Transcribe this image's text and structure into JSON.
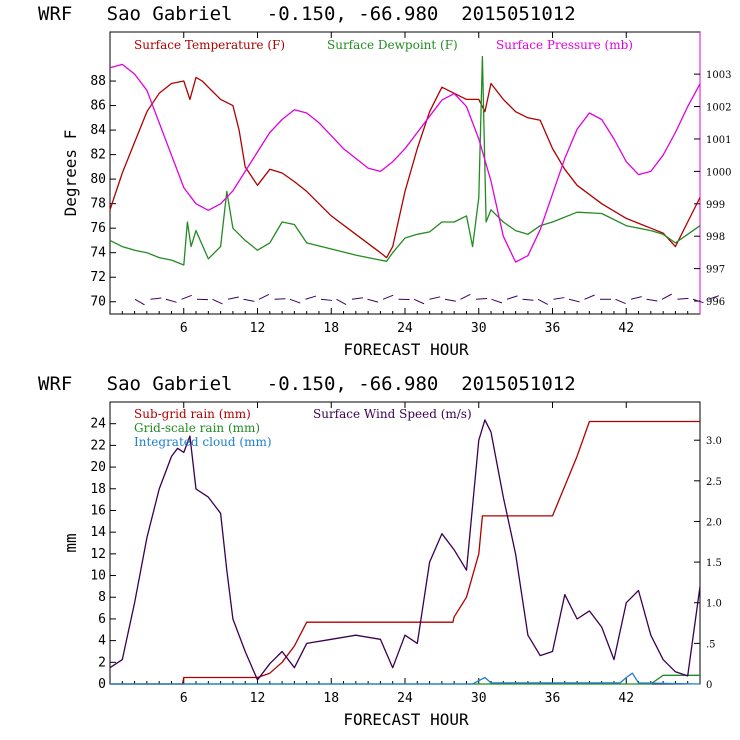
{
  "chart_data": [
    {
      "type": "line",
      "title": "WRF   Sao Gabriel   -0.150, -66.980  2015051012",
      "xlabel": "FORECAST HOUR",
      "ylabel": "Degrees F",
      "xlim": [
        0,
        48
      ],
      "ylim": [
        69,
        92
      ],
      "y2lim": [
        995.6,
        1004.3
      ],
      "x_ticks": [
        "6",
        "12",
        "18",
        "24",
        "30",
        "36",
        "42"
      ],
      "y_ticks": [
        "70",
        "72",
        "74",
        "76",
        "78",
        "80",
        "82",
        "84",
        "86",
        "88"
      ],
      "y2_ticks": [
        "996",
        "997",
        "998",
        "999",
        "1000",
        "1001",
        "1002",
        "1003"
      ],
      "colors": {
        "temperature": "#b00000",
        "dewpoint": "#228b22",
        "pressure": "#e000e0",
        "barbs": "#3a0060"
      },
      "series": [
        {
          "name": "Surface Temperature (F)",
          "axis": "left",
          "x": [
            0,
            1,
            2,
            3,
            4,
            5,
            6,
            6.5,
            7,
            7.5,
            8,
            9,
            10,
            10.5,
            11,
            12,
            13,
            14,
            15,
            16,
            18,
            20,
            22,
            22.5,
            23,
            24,
            25,
            26,
            27,
            28,
            29,
            30,
            30.5,
            31,
            32,
            33,
            34,
            35,
            36,
            37,
            38,
            40,
            42,
            44,
            45,
            46,
            47,
            48
          ],
          "y": [
            77.5,
            80.5,
            83,
            85.5,
            87,
            87.8,
            88,
            86.5,
            88.3,
            88,
            87.5,
            86.5,
            86,
            84,
            81,
            79.5,
            80.8,
            80.5,
            79.8,
            79,
            77,
            75.5,
            74,
            73.6,
            74.5,
            79,
            82.5,
            85.5,
            87.5,
            87,
            86.5,
            86.5,
            85.5,
            87.8,
            86.5,
            85.5,
            85,
            84.8,
            82.5,
            80.8,
            79.5,
            78,
            76.8,
            76,
            75.6,
            74.5,
            76.5,
            78.5
          ]
        },
        {
          "name": "Surface Dewpoint (F)",
          "axis": "left",
          "x": [
            0,
            1,
            2,
            3,
            4,
            5,
            6,
            6.3,
            6.6,
            7,
            8,
            9,
            9.5,
            10,
            11,
            12,
            13,
            14,
            15,
            16,
            18,
            20,
            22,
            22.5,
            23,
            24,
            25,
            26,
            27,
            28,
            29,
            29.5,
            30,
            30.3,
            30.6,
            31,
            32,
            33,
            34,
            35,
            36,
            38,
            40,
            42,
            44,
            45,
            46,
            47,
            48
          ],
          "y": [
            75,
            74.5,
            74.2,
            74,
            73.6,
            73.4,
            73,
            76.5,
            74.5,
            75.8,
            73.5,
            74.5,
            79,
            76,
            75,
            74.2,
            74.8,
            76.5,
            76.3,
            74.8,
            74.3,
            73.8,
            73.4,
            73.3,
            74,
            75.2,
            75.5,
            75.7,
            76.5,
            76.5,
            77,
            74.5,
            78.5,
            90,
            76.5,
            77.5,
            76.5,
            75.8,
            75.5,
            76.2,
            76.5,
            77.3,
            77.2,
            76.2,
            75.8,
            75.5,
            74.8,
            75.5,
            76.2
          ]
        },
        {
          "name": "Surface Pressure (mb)",
          "axis": "right",
          "x": [
            0,
            1,
            2,
            3,
            4,
            5,
            6,
            7,
            8,
            9,
            10,
            11,
            12,
            13,
            14,
            15,
            16,
            17,
            18,
            19,
            20,
            21,
            22,
            23,
            24,
            25,
            26,
            27,
            28,
            29,
            30,
            31,
            32,
            33,
            34,
            35,
            36,
            37,
            38,
            39,
            40,
            41,
            42,
            43,
            44,
            45,
            46,
            47,
            48
          ],
          "y": [
            1003.2,
            1003.3,
            1003,
            1002.5,
            1001.5,
            1000.5,
            999.5,
            999,
            998.8,
            999,
            999.4,
            1000,
            1000.6,
            1001.2,
            1001.6,
            1001.9,
            1001.8,
            1001.5,
            1001.1,
            1000.7,
            1000.4,
            1000.1,
            1000,
            1000.3,
            1000.7,
            1001.2,
            1001.7,
            1002.2,
            1002.4,
            1002,
            1001,
            999.7,
            998,
            997.2,
            997.4,
            998.2,
            999.3,
            1000.4,
            1001.3,
            1001.8,
            1001.6,
            1001,
            1000.3,
            999.9,
            1000,
            1000.5,
            1001.2,
            1002,
            1002.7
          ]
        }
      ],
      "legend": [
        "Surface Temperature (F)",
        "Surface Dewpoint (F)",
        "Surface Pressure (mb)"
      ]
    },
    {
      "type": "line",
      "title": "WRF   Sao Gabriel   -0.150, -66.980  2015051012",
      "xlabel": "FORECAST HOUR",
      "ylabel": "mm",
      "xlim": [
        0,
        48
      ],
      "ylim": [
        0,
        26
      ],
      "y2lim": [
        0,
        3.47
      ],
      "x_ticks": [
        "6",
        "12",
        "18",
        "24",
        "30",
        "36",
        "42"
      ],
      "y_ticks": [
        "0",
        "2",
        "4",
        "6",
        "8",
        "10",
        "12",
        "14",
        "16",
        "18",
        "20",
        "22",
        "24"
      ],
      "y2_ticks": [
        "0",
        ".5",
        "1.0",
        "1.5",
        "2.0",
        "2.5",
        "3.0"
      ],
      "colors": {
        "subgrid": "#b00000",
        "gridscale": "#228b22",
        "cloud": "#1e7fd0",
        "wind": "#3a0050"
      },
      "series": [
        {
          "name": "Sub-grid rain (mm)",
          "axis": "left",
          "x": [
            0,
            5.9,
            6,
            12,
            13,
            14,
            15,
            16,
            27.9,
            28,
            29,
            30,
            30.3,
            31,
            35,
            36,
            38,
            39,
            40,
            48
          ],
          "y": [
            0,
            0,
            0.6,
            0.6,
            1,
            2,
            3.5,
            5.7,
            5.7,
            6.2,
            8,
            12,
            15.5,
            15.5,
            15.5,
            15.5,
            21,
            24.2,
            24.2,
            24.2
          ]
        },
        {
          "name": "Grid-scale rain (mm)",
          "axis": "left",
          "x": [
            0,
            44,
            45,
            48
          ],
          "y": [
            0,
            0,
            0.8,
            0.8
          ]
        },
        {
          "name": "Integrated cloud (mm)",
          "axis": "left",
          "x": [
            0,
            29.5,
            30,
            30.5,
            31,
            41.5,
            42,
            42.5,
            43,
            48
          ],
          "y": [
            0,
            0,
            0.3,
            0.6,
            0.1,
            0.1,
            0.6,
            1,
            0.1,
            0
          ],
          "note": "small spikes near baseline"
        },
        {
          "name": "Surface Wind Speed (m/s)",
          "axis": "right",
          "x": [
            0,
            1,
            2,
            3,
            4,
            5,
            5.5,
            6,
            6.5,
            7,
            8,
            9,
            9.5,
            10,
            11,
            12,
            13,
            14,
            15,
            16,
            18,
            20,
            22,
            23,
            24,
            25,
            26,
            27,
            28,
            29,
            30,
            30.5,
            31,
            32,
            33,
            34,
            35,
            36,
            37,
            38,
            39,
            40,
            41,
            42,
            43,
            44,
            45,
            46,
            47,
            48
          ],
          "y": [
            0.2,
            0.3,
            1,
            1.8,
            2.4,
            2.8,
            2.9,
            2.85,
            3.05,
            2.4,
            2.3,
            2.1,
            1.4,
            0.8,
            0.4,
            0.05,
            0.25,
            0.4,
            0.2,
            0.5,
            0.55,
            0.6,
            0.55,
            0.2,
            0.6,
            0.5,
            1.5,
            1.85,
            1.65,
            1.4,
            3.0,
            3.25,
            3.1,
            2.3,
            1.6,
            0.6,
            0.35,
            0.4,
            1.1,
            0.8,
            0.9,
            0.7,
            0.3,
            1.0,
            1.15,
            0.6,
            0.3,
            0.15,
            0.1,
            1.2
          ]
        }
      ],
      "legend": [
        "Sub-grid rain (mm)",
        "Surface Wind Speed (m/s)",
        "Grid-scale rain (mm)",
        "Integrated cloud (mm)"
      ]
    }
  ]
}
